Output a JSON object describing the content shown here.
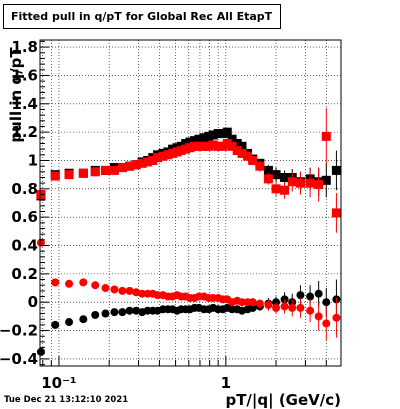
{
  "title": "Fitted pull in q/pT for Global Rec All EtapT",
  "timestamp": "Tue Dec 21 13:12:10 2021",
  "chart_data": {
    "type": "scatter",
    "title": "Fitted pull in q/pT for Global Rec All EtapT",
    "xlabel": "pT/|q| (GeV/c)",
    "ylabel": "pull in q/pT",
    "xscale": "log",
    "xlim": [
      0.077,
      4.9
    ],
    "ylim": [
      -0.45,
      1.85
    ],
    "grid": true,
    "x_tick_labels": [
      "10⁻¹",
      "1"
    ],
    "y_tick_labels": [
      "−0.4",
      "−0.2",
      "0",
      "0.2",
      "0.4",
      "0.6",
      "0.8",
      "1",
      "1.2",
      "1.4",
      "1.6",
      "1.8"
    ],
    "colors": {
      "series_black": "#000000",
      "series_red": "#ff0000"
    },
    "series": [
      {
        "role": "width-black",
        "color": "#000000",
        "marker": "square",
        "x": [
          0.078,
          0.095,
          0.115,
          0.14,
          0.165,
          0.19,
          0.215,
          0.24,
          0.265,
          0.29,
          0.315,
          0.34,
          0.365,
          0.39,
          0.42,
          0.45,
          0.48,
          0.51,
          0.54,
          0.575,
          0.61,
          0.65,
          0.69,
          0.74,
          0.79,
          0.84,
          0.9,
          0.96,
          1.02,
          1.09,
          1.17,
          1.25,
          1.35,
          1.45,
          1.6,
          1.8,
          2.0,
          2.25,
          2.5,
          2.8,
          3.2,
          3.6,
          4.0,
          4.6
        ],
        "y": [
          0.75,
          0.9,
          0.91,
          0.91,
          0.93,
          0.93,
          0.95,
          0.95,
          0.96,
          0.97,
          0.99,
          1.0,
          1.02,
          1.04,
          1.05,
          1.06,
          1.08,
          1.09,
          1.1,
          1.12,
          1.13,
          1.14,
          1.15,
          1.16,
          1.17,
          1.18,
          1.19,
          1.19,
          1.2,
          1.15,
          1.12,
          1.1,
          1.05,
          1.01,
          0.98,
          0.93,
          0.9,
          0.88,
          0.88,
          0.85,
          0.87,
          0.85,
          0.86,
          0.93
        ],
        "err": [
          0.02,
          0.01,
          0.01,
          0.01,
          0.01,
          0.01,
          0.01,
          0.01,
          0.01,
          0.01,
          0.01,
          0.01,
          0.01,
          0.01,
          0.01,
          0.01,
          0.01,
          0.01,
          0.01,
          0.01,
          0.01,
          0.01,
          0.01,
          0.01,
          0.01,
          0.01,
          0.01,
          0.01,
          0.01,
          0.02,
          0.02,
          0.02,
          0.02,
          0.03,
          0.03,
          0.04,
          0.05,
          0.05,
          0.06,
          0.07,
          0.08,
          0.1,
          0.12,
          0.14
        ]
      },
      {
        "role": "width-red",
        "color": "#ff0000",
        "marker": "square",
        "x": [
          0.078,
          0.095,
          0.115,
          0.14,
          0.165,
          0.19,
          0.215,
          0.24,
          0.265,
          0.29,
          0.315,
          0.34,
          0.365,
          0.39,
          0.42,
          0.45,
          0.48,
          0.51,
          0.54,
          0.575,
          0.61,
          0.65,
          0.69,
          0.74,
          0.79,
          0.84,
          0.9,
          0.96,
          1.02,
          1.09,
          1.17,
          1.25,
          1.35,
          1.45,
          1.6,
          1.8,
          2.0,
          2.25,
          2.5,
          2.8,
          3.2,
          3.6,
          4.0,
          4.6
        ],
        "y": [
          0.76,
          0.89,
          0.9,
          0.91,
          0.92,
          0.93,
          0.93,
          0.95,
          0.96,
          0.97,
          0.98,
          0.99,
          1.0,
          1.02,
          1.03,
          1.04,
          1.05,
          1.06,
          1.07,
          1.08,
          1.09,
          1.1,
          1.1,
          1.1,
          1.1,
          1.11,
          1.1,
          1.1,
          1.12,
          1.1,
          1.07,
          1.05,
          1.03,
          1.0,
          0.96,
          0.87,
          0.8,
          0.79,
          0.85,
          0.84,
          0.84,
          0.83,
          1.17,
          0.63
        ],
        "err": [
          0.02,
          0.01,
          0.01,
          0.01,
          0.01,
          0.01,
          0.01,
          0.01,
          0.01,
          0.01,
          0.01,
          0.01,
          0.01,
          0.01,
          0.01,
          0.01,
          0.01,
          0.01,
          0.01,
          0.01,
          0.01,
          0.01,
          0.01,
          0.01,
          0.01,
          0.01,
          0.01,
          0.01,
          0.01,
          0.02,
          0.02,
          0.02,
          0.03,
          0.03,
          0.04,
          0.04,
          0.05,
          0.06,
          0.07,
          0.08,
          0.1,
          0.12,
          0.2,
          0.14
        ]
      },
      {
        "role": "mean-black",
        "color": "#000000",
        "marker": "circle",
        "x": [
          0.078,
          0.095,
          0.115,
          0.14,
          0.165,
          0.19,
          0.215,
          0.24,
          0.265,
          0.29,
          0.315,
          0.34,
          0.365,
          0.39,
          0.42,
          0.45,
          0.48,
          0.51,
          0.54,
          0.575,
          0.61,
          0.65,
          0.69,
          0.74,
          0.79,
          0.84,
          0.9,
          0.96,
          1.02,
          1.09,
          1.17,
          1.25,
          1.35,
          1.45,
          1.6,
          1.8,
          2.0,
          2.25,
          2.5,
          2.8,
          3.2,
          3.6,
          4.0,
          4.6
        ],
        "y": [
          -0.35,
          -0.16,
          -0.14,
          -0.12,
          -0.09,
          -0.08,
          -0.07,
          -0.07,
          -0.06,
          -0.06,
          -0.07,
          -0.06,
          -0.06,
          -0.06,
          -0.05,
          -0.05,
          -0.05,
          -0.06,
          -0.05,
          -0.05,
          -0.05,
          -0.04,
          -0.04,
          -0.05,
          -0.05,
          -0.04,
          -0.05,
          -0.05,
          -0.04,
          -0.05,
          -0.05,
          -0.06,
          -0.05,
          -0.04,
          -0.03,
          -0.01,
          0.0,
          0.02,
          0.0,
          0.05,
          0.04,
          0.06,
          0.0,
          0.02
        ],
        "err": [
          0.02,
          0.01,
          0.01,
          0.01,
          0.01,
          0.01,
          0.01,
          0.01,
          0.01,
          0.01,
          0.01,
          0.01,
          0.01,
          0.01,
          0.01,
          0.01,
          0.01,
          0.01,
          0.01,
          0.01,
          0.01,
          0.01,
          0.01,
          0.01,
          0.01,
          0.01,
          0.01,
          0.01,
          0.01,
          0.02,
          0.02,
          0.02,
          0.02,
          0.03,
          0.03,
          0.04,
          0.04,
          0.05,
          0.06,
          0.07,
          0.08,
          0.09,
          0.1,
          0.14
        ]
      },
      {
        "role": "mean-red",
        "color": "#ff0000",
        "marker": "circle",
        "x": [
          0.078,
          0.095,
          0.115,
          0.14,
          0.165,
          0.19,
          0.215,
          0.24,
          0.265,
          0.29,
          0.315,
          0.34,
          0.365,
          0.39,
          0.42,
          0.45,
          0.48,
          0.51,
          0.54,
          0.575,
          0.61,
          0.65,
          0.69,
          0.74,
          0.79,
          0.84,
          0.9,
          0.96,
          1.02,
          1.09,
          1.17,
          1.25,
          1.35,
          1.45,
          1.6,
          1.8,
          2.0,
          2.25,
          2.5,
          2.8,
          3.2,
          3.6,
          4.0,
          4.6
        ],
        "y": [
          0.42,
          0.14,
          0.13,
          0.14,
          0.12,
          0.1,
          0.09,
          0.08,
          0.08,
          0.07,
          0.06,
          0.06,
          0.06,
          0.05,
          0.05,
          0.04,
          0.04,
          0.05,
          0.04,
          0.04,
          0.03,
          0.03,
          0.04,
          0.04,
          0.03,
          0.03,
          0.03,
          0.02,
          0.02,
          0.0,
          0.01,
          0.0,
          0.0,
          0.0,
          -0.01,
          -0.02,
          -0.04,
          -0.03,
          -0.04,
          -0.04,
          -0.06,
          -0.1,
          -0.15,
          -0.11
        ],
        "err": [
          0.02,
          0.01,
          0.01,
          0.01,
          0.01,
          0.01,
          0.01,
          0.01,
          0.01,
          0.01,
          0.01,
          0.01,
          0.01,
          0.01,
          0.01,
          0.01,
          0.01,
          0.01,
          0.01,
          0.01,
          0.01,
          0.01,
          0.01,
          0.01,
          0.01,
          0.01,
          0.01,
          0.01,
          0.01,
          0.02,
          0.02,
          0.02,
          0.02,
          0.03,
          0.03,
          0.04,
          0.04,
          0.05,
          0.06,
          0.07,
          0.08,
          0.1,
          0.12,
          0.14
        ]
      }
    ]
  }
}
